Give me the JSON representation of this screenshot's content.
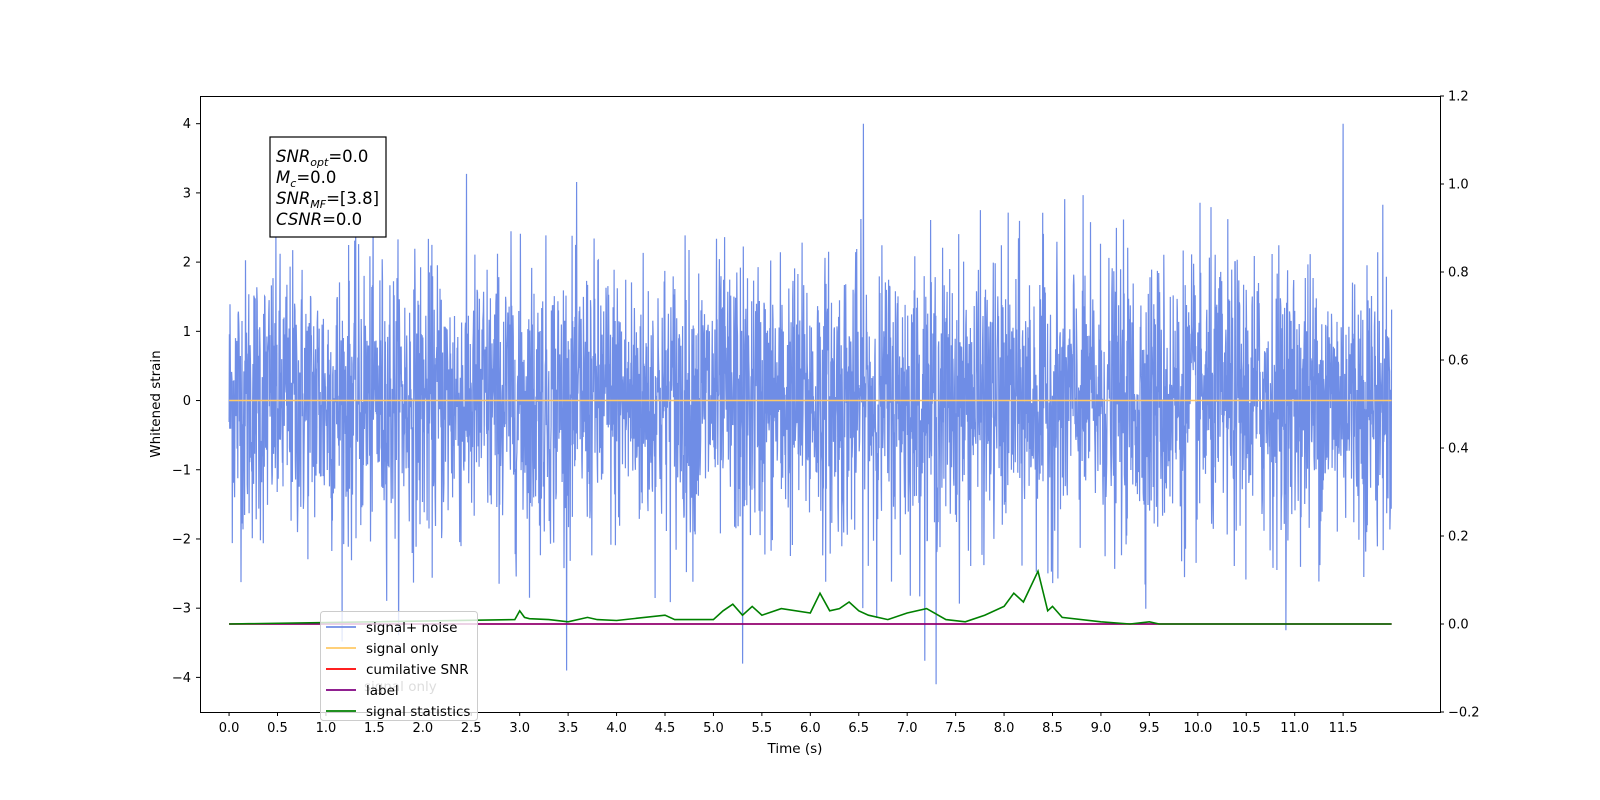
{
  "chart_data": {
    "type": "line",
    "xlabel": "Time (s)",
    "ylabel": "Whitened strain",
    "xlim": [
      -0.3,
      12.5
    ],
    "ylim": [
      -4.5,
      4.4
    ],
    "y2lim": [
      -0.2,
      1.2
    ],
    "x_ticks": [
      "0.0",
      "0.5",
      "1.0",
      "1.5",
      "2.0",
      "2.5",
      "3.0",
      "3.5",
      "4.0",
      "4.5",
      "5.0",
      "5.5",
      "6.0",
      "6.5",
      "7.0",
      "7.5",
      "8.0",
      "8.5",
      "9.0",
      "9.5",
      "10.0",
      "10.5",
      "11.0",
      "11.5"
    ],
    "y_ticks": [
      "4",
      "3",
      "2",
      "1",
      "0",
      "−1",
      "−2",
      "−3",
      "−4"
    ],
    "y2_ticks": [
      "1.2",
      "1.0",
      "0.8",
      "0.6",
      "0.4",
      "0.2",
      "0.0",
      "−0.2"
    ],
    "grid": false,
    "legend_position": "lower-left",
    "colors": {
      "signal_noise": "#6f8de6",
      "signal_only": "#ffc966",
      "cumulative_snr": "#ff0000",
      "label": "#800080",
      "signal_statistics": "#008000"
    },
    "series": [
      {
        "name": "signal+ noise",
        "axis": "left",
        "description_type": "noise",
        "x_range": [
          0.0,
          12.0
        ],
        "amplitude_std": 1.0,
        "notable_peaks": [
          {
            "x": 6.55,
            "y": 4.0
          },
          {
            "x": 11.5,
            "y": 4.0
          },
          {
            "x": 7.3,
            "y": -4.1
          },
          {
            "x": 5.3,
            "y": -3.8
          }
        ]
      },
      {
        "name": "signal only",
        "axis": "left",
        "x": [
          0.0,
          12.0
        ],
        "values": [
          0.0,
          0.0
        ]
      },
      {
        "name": "cumilative SNR",
        "axis": "right",
        "x": [
          0.0,
          12.0
        ],
        "values": [
          0.0,
          0.0
        ]
      },
      {
        "name": "label",
        "axis": "right",
        "x": [
          0.0,
          12.0
        ],
        "values": [
          0.0,
          0.0
        ]
      },
      {
        "name": "signal statistics",
        "axis": "right",
        "x": [
          0.0,
          2.95,
          3.0,
          3.05,
          3.1,
          3.3,
          3.5,
          3.7,
          3.8,
          4.0,
          4.5,
          4.6,
          5.0,
          5.1,
          5.2,
          5.3,
          5.4,
          5.5,
          5.7,
          6.0,
          6.1,
          6.2,
          6.3,
          6.4,
          6.5,
          6.6,
          6.8,
          7.0,
          7.2,
          7.4,
          7.6,
          7.8,
          8.0,
          8.1,
          8.2,
          8.35,
          8.45,
          8.5,
          8.6,
          9.0,
          9.3,
          9.5,
          9.6,
          12.0
        ],
        "values": [
          0.0,
          0.01,
          0.03,
          0.015,
          0.012,
          0.01,
          0.005,
          0.015,
          0.01,
          0.008,
          0.02,
          0.01,
          0.01,
          0.03,
          0.045,
          0.02,
          0.04,
          0.02,
          0.035,
          0.025,
          0.07,
          0.03,
          0.035,
          0.05,
          0.03,
          0.02,
          0.01,
          0.025,
          0.035,
          0.01,
          0.005,
          0.02,
          0.04,
          0.07,
          0.05,
          0.12,
          0.03,
          0.04,
          0.015,
          0.005,
          0.0,
          0.005,
          0.0,
          0.0
        ]
      }
    ],
    "annotation": [
      {
        "name": "SNR",
        "sub": "opt",
        "value": "=0.0"
      },
      {
        "name": "M",
        "sub": "c",
        "value": "=0.0"
      },
      {
        "name": "SNR",
        "sub": "MF",
        "value": "=[3.8]"
      },
      {
        "name": "CSNR",
        "sub": "",
        "value": "=0.0"
      }
    ],
    "legend_overlap_text": "signal only"
  }
}
